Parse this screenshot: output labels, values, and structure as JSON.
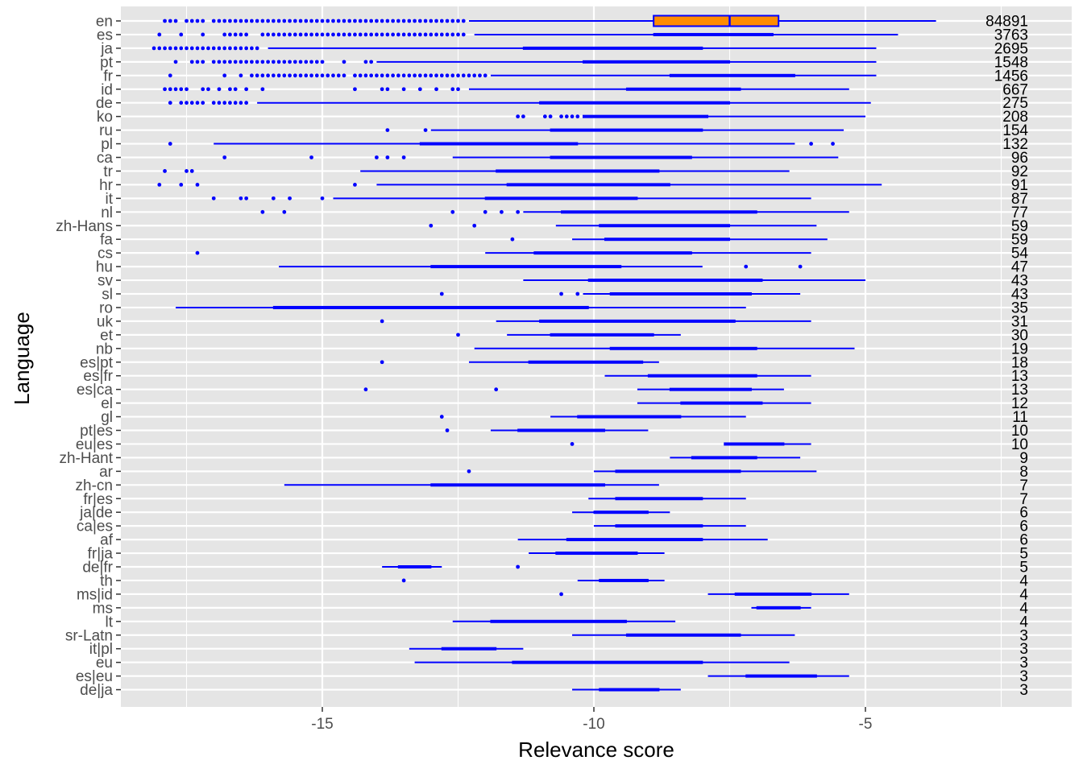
{
  "chart_data": {
    "type": "boxplot",
    "orientation": "horizontal",
    "title": "",
    "xlabel": "Relevance score",
    "ylabel": "Language",
    "xlim": [
      -19,
      -1.6
    ],
    "xticks": [
      -15,
      -10,
      -5
    ],
    "grid": true,
    "colors": {
      "panel": "#e5e5e5",
      "grid": "#ffffff",
      "whisker": "#0000ff",
      "box_fill": "#ff8c00",
      "box_outline": "#0000ff",
      "text": "#4d4d4d",
      "count_text": "#000000"
    },
    "series": [
      {
        "name": "en",
        "count": "84891",
        "box": {
          "q1": -8.9,
          "median": -7.5,
          "q3": -6.6
        },
        "whisker": [
          -12.3,
          -3.7
        ],
        "outliers": [
          -17.9,
          -17.8,
          -17.7,
          -17.5,
          -17.4,
          -17.3,
          -17.2,
          -17.0,
          -16.9,
          -16.8,
          -16.7,
          -16.6,
          -16.5,
          -16.4,
          -16.3,
          -16.2,
          -16.1,
          -16.0,
          -15.9,
          -15.8,
          -15.7,
          -15.6,
          -15.5,
          -15.4,
          -15.3,
          -15.2,
          -15.1,
          -15.0,
          -14.9,
          -14.8,
          -14.7,
          -14.6,
          -14.5,
          -14.4,
          -14.3,
          -14.2,
          -14.1,
          -14.0,
          -13.9,
          -13.8,
          -13.7,
          -13.6,
          -13.5,
          -13.4,
          -13.3,
          -13.2,
          -13.1,
          -13.0,
          -12.9,
          -12.8,
          -12.7,
          -12.6,
          -12.5,
          -12.4
        ]
      },
      {
        "name": "es",
        "count": "3763",
        "box": {
          "q1": -8.9,
          "median": -7.7,
          "q3": -6.7
        },
        "whisker": [
          -12.2,
          -4.4
        ],
        "outliers": [
          -18.0,
          -17.6,
          -17.2,
          -16.8,
          -16.7,
          -16.6,
          -16.5,
          -16.4,
          -16.1,
          -16.0,
          -15.9,
          -15.8,
          -15.7,
          -15.6,
          -15.5,
          -15.4,
          -15.3,
          -15.2,
          -15.1,
          -15.0,
          -14.9,
          -14.8,
          -14.7,
          -14.6,
          -14.5,
          -14.4,
          -14.3,
          -14.2,
          -14.1,
          -14.0,
          -13.9,
          -13.8,
          -13.7,
          -13.6,
          -13.5,
          -13.4,
          -13.3,
          -13.2,
          -13.1,
          -13.0,
          -12.9,
          -12.8,
          -12.7,
          -12.6,
          -12.5,
          -12.4
        ]
      },
      {
        "name": "ja",
        "count": "2695",
        "box": {
          "q1": -11.3,
          "median": -9.5,
          "q3": -8.0
        },
        "whisker": [
          -16.0,
          -4.8
        ],
        "outliers": [
          -18.1,
          -18.0,
          -17.9,
          -17.8,
          -17.7,
          -17.6,
          -17.5,
          -17.4,
          -17.3,
          -17.2,
          -17.1,
          -17.0,
          -16.9,
          -16.8,
          -16.7,
          -16.6,
          -16.5,
          -16.4,
          -16.3,
          -16.2
        ]
      },
      {
        "name": "pt",
        "count": "1548",
        "box": {
          "q1": -10.2,
          "median": -8.7,
          "q3": -7.5
        },
        "whisker": [
          -14.0,
          -4.8
        ],
        "outliers": [
          -17.7,
          -17.4,
          -17.3,
          -17.2,
          -17.0,
          -16.9,
          -16.8,
          -16.7,
          -16.6,
          -16.5,
          -16.4,
          -16.3,
          -16.2,
          -16.1,
          -16.0,
          -15.9,
          -15.8,
          -15.7,
          -15.6,
          -15.5,
          -15.4,
          -15.3,
          -15.2,
          -15.1,
          -15.0,
          -14.6,
          -14.2,
          -14.1
        ]
      },
      {
        "name": "fr",
        "count": "1456",
        "box": {
          "q1": -8.6,
          "median": -7.2,
          "q3": -6.3
        },
        "whisker": [
          -11.9,
          -4.8
        ],
        "outliers": [
          -17.8,
          -16.8,
          -16.5,
          -16.3,
          -16.2,
          -16.1,
          -16.0,
          -15.9,
          -15.8,
          -15.7,
          -15.6,
          -15.5,
          -15.4,
          -15.3,
          -15.2,
          -15.1,
          -15.0,
          -14.9,
          -14.8,
          -14.7,
          -14.6,
          -14.4,
          -14.3,
          -14.2,
          -14.1,
          -14.0,
          -13.9,
          -13.8,
          -13.7,
          -13.6,
          -13.5,
          -13.4,
          -13.3,
          -13.2,
          -13.1,
          -13.0,
          -12.9,
          -12.8,
          -12.7,
          -12.6,
          -12.5,
          -12.4,
          -12.3,
          -12.2,
          -12.1,
          -12.0
        ]
      },
      {
        "name": "id",
        "count": "667",
        "box": {
          "q1": -9.4,
          "median": -8.2,
          "q3": -7.3
        },
        "whisker": [
          -12.3,
          -5.3
        ],
        "outliers": [
          -17.9,
          -17.8,
          -17.7,
          -17.6,
          -17.5,
          -17.2,
          -17.1,
          -16.9,
          -16.7,
          -16.6,
          -16.4,
          -16.1,
          -14.4,
          -13.9,
          -13.8,
          -13.5,
          -13.2,
          -12.9,
          -12.6,
          -12.5
        ]
      },
      {
        "name": "de",
        "count": "275",
        "box": {
          "q1": -11.0,
          "median": -9.1,
          "q3": -7.5
        },
        "whisker": [
          -16.2,
          -4.9
        ],
        "outliers": [
          -17.8,
          -17.6,
          -17.5,
          -17.4,
          -17.3,
          -17.2,
          -17.0,
          -16.9,
          -16.8,
          -16.7,
          -16.6,
          -16.5,
          -16.4
        ]
      },
      {
        "name": "ko",
        "count": "208",
        "box": {
          "q1": -10.2,
          "median": -8.8,
          "q3": -7.9
        },
        "whisker": [
          -10.2,
          -5.0
        ],
        "outliers": [
          -11.4,
          -11.3,
          -10.9,
          -10.8,
          -10.6,
          -10.5,
          -10.4,
          -10.3
        ]
      },
      {
        "name": "ru",
        "count": "154",
        "box": {
          "q1": -10.8,
          "median": -9.2,
          "q3": -8.0
        },
        "whisker": [
          -13.0,
          -5.4
        ],
        "outliers": [
          -13.8,
          -13.1
        ]
      },
      {
        "name": "pl",
        "count": "132",
        "box": {
          "q1": -13.2,
          "median": -11.6,
          "q3": -10.3
        },
        "whisker": [
          -17.0,
          -6.3
        ],
        "outliers": [
          -17.8,
          -6.0,
          -5.6
        ]
      },
      {
        "name": "ca",
        "count": "96",
        "box": {
          "q1": -10.8,
          "median": -9.2,
          "q3": -8.2
        },
        "whisker": [
          -12.6,
          -5.5
        ],
        "outliers": [
          -16.8,
          -15.2,
          -14.0,
          -13.8,
          -13.5
        ]
      },
      {
        "name": "tr",
        "count": "92",
        "box": {
          "q1": -11.8,
          "median": -10.2,
          "q3": -8.8
        },
        "whisker": [
          -14.3,
          -6.4
        ],
        "outliers": [
          -17.9,
          -17.5,
          -17.4
        ]
      },
      {
        "name": "hr",
        "count": "91",
        "box": {
          "q1": -11.6,
          "median": -9.9,
          "q3": -8.6
        },
        "whisker": [
          -14.0,
          -4.7
        ],
        "outliers": [
          -18.0,
          -17.6,
          -17.3,
          -14.4
        ]
      },
      {
        "name": "it",
        "count": "87",
        "box": {
          "q1": -12.0,
          "median": -10.6,
          "q3": -9.2
        },
        "whisker": [
          -14.8,
          -6.0
        ],
        "outliers": [
          -17.0,
          -16.5,
          -16.4,
          -15.9,
          -15.6,
          -15.0
        ]
      },
      {
        "name": "nl",
        "count": "77",
        "box": {
          "q1": -10.6,
          "median": -8.6,
          "q3": -7.0
        },
        "whisker": [
          -11.3,
          -5.3
        ],
        "outliers": [
          -16.1,
          -15.7,
          -12.6,
          -12.0,
          -11.7,
          -11.4
        ]
      },
      {
        "name": "zh-Hans",
        "count": "59",
        "box": {
          "q1": -9.9,
          "median": -8.6,
          "q3": -7.5
        },
        "whisker": [
          -10.7,
          -5.9
        ],
        "outliers": [
          -13.0,
          -12.2
        ]
      },
      {
        "name": "fa",
        "count": "59",
        "box": {
          "q1": -9.8,
          "median": -8.6,
          "q3": -7.5
        },
        "whisker": [
          -10.4,
          -5.7
        ],
        "outliers": [
          -11.5
        ]
      },
      {
        "name": "cs",
        "count": "54",
        "box": {
          "q1": -11.1,
          "median": -9.6,
          "q3": -8.2
        },
        "whisker": [
          -12.0,
          -6.0
        ],
        "outliers": [
          -17.3
        ]
      },
      {
        "name": "hu",
        "count": "47",
        "box": {
          "q1": -13.0,
          "median": -10.9,
          "q3": -9.5
        },
        "whisker": [
          -15.8,
          -8.0
        ],
        "outliers": [
          -7.2,
          -6.2
        ]
      },
      {
        "name": "sv",
        "count": "43",
        "box": {
          "q1": -10.1,
          "median": -8.7,
          "q3": -6.9
        },
        "whisker": [
          -11.3,
          -5.0
        ],
        "outliers": []
      },
      {
        "name": "sl",
        "count": "43",
        "box": {
          "q1": -9.7,
          "median": -8.5,
          "q3": -7.1
        },
        "whisker": [
          -10.2,
          -6.2
        ],
        "outliers": [
          -12.8,
          -10.6,
          -10.3
        ]
      },
      {
        "name": "ro",
        "count": "35",
        "box": {
          "q1": -15.9,
          "median": -12.5,
          "q3": -10.1
        },
        "whisker": [
          -17.7,
          -7.2
        ],
        "outliers": []
      },
      {
        "name": "uk",
        "count": "31",
        "box": {
          "q1": -11.0,
          "median": -9.2,
          "q3": -7.4
        },
        "whisker": [
          -11.8,
          -6.0
        ],
        "outliers": [
          -13.9
        ]
      },
      {
        "name": "et",
        "count": "30",
        "box": {
          "q1": -10.8,
          "median": -9.5,
          "q3": -8.9
        },
        "whisker": [
          -11.6,
          -8.4
        ],
        "outliers": [
          -12.5
        ]
      },
      {
        "name": "nb",
        "count": "19",
        "box": {
          "q1": -9.7,
          "median": -8.3,
          "q3": -7.0
        },
        "whisker": [
          -12.2,
          -5.2
        ],
        "outliers": []
      },
      {
        "name": "es|pt",
        "count": "18",
        "box": {
          "q1": -11.2,
          "median": -10.1,
          "q3": -9.1
        },
        "whisker": [
          -12.3,
          -8.8
        ],
        "outliers": [
          -13.9
        ]
      },
      {
        "name": "es|fr",
        "count": "13",
        "box": {
          "q1": -9.0,
          "median": -8.0,
          "q3": -7.0
        },
        "whisker": [
          -9.8,
          -6.0
        ],
        "outliers": []
      },
      {
        "name": "es|ca",
        "count": "13",
        "box": {
          "q1": -8.6,
          "median": -8.0,
          "q3": -7.1
        },
        "whisker": [
          -9.2,
          -6.5
        ],
        "outliers": [
          -14.2,
          -11.8
        ]
      },
      {
        "name": "el",
        "count": "12",
        "box": {
          "q1": -8.4,
          "median": -7.6,
          "q3": -6.9
        },
        "whisker": [
          -9.2,
          -6.0
        ],
        "outliers": []
      },
      {
        "name": "gl",
        "count": "11",
        "box": {
          "q1": -10.3,
          "median": -9.4,
          "q3": -8.4
        },
        "whisker": [
          -10.8,
          -7.2
        ],
        "outliers": [
          -12.8
        ]
      },
      {
        "name": "pt|es",
        "count": "10",
        "box": {
          "q1": -11.4,
          "median": -10.6,
          "q3": -9.8
        },
        "whisker": [
          -11.9,
          -9.0
        ],
        "outliers": [
          -12.7
        ]
      },
      {
        "name": "eu|es",
        "count": "10",
        "box": {
          "q1": -7.6,
          "median": -7.0,
          "q3": -6.5
        },
        "whisker": [
          -7.6,
          -6.0
        ],
        "outliers": [
          -10.4
        ]
      },
      {
        "name": "zh-Hant",
        "count": "9",
        "box": {
          "q1": -8.2,
          "median": -7.5,
          "q3": -7.0
        },
        "whisker": [
          -8.6,
          -6.2
        ],
        "outliers": []
      },
      {
        "name": "ar",
        "count": "8",
        "box": {
          "q1": -9.6,
          "median": -9.0,
          "q3": -7.3
        },
        "whisker": [
          -10.0,
          -5.9
        ],
        "outliers": [
          -12.3
        ]
      },
      {
        "name": "zh-cn",
        "count": "7",
        "box": {
          "q1": -13.0,
          "median": -11.0,
          "q3": -9.8
        },
        "whisker": [
          -15.7,
          -8.8
        ],
        "outliers": []
      },
      {
        "name": "fr|es",
        "count": "7",
        "box": {
          "q1": -9.6,
          "median": -8.8,
          "q3": -8.0
        },
        "whisker": [
          -10.1,
          -7.2
        ],
        "outliers": []
      },
      {
        "name": "ja|de",
        "count": "6",
        "box": {
          "q1": -10.0,
          "median": -9.5,
          "q3": -9.0
        },
        "whisker": [
          -10.4,
          -8.6
        ],
        "outliers": []
      },
      {
        "name": "ca|es",
        "count": "6",
        "box": {
          "q1": -9.6,
          "median": -8.8,
          "q3": -8.0
        },
        "whisker": [
          -10.0,
          -7.2
        ],
        "outliers": []
      },
      {
        "name": "af",
        "count": "6",
        "box": {
          "q1": -10.5,
          "median": -9.4,
          "q3": -8.0
        },
        "whisker": [
          -11.4,
          -6.8
        ],
        "outliers": []
      },
      {
        "name": "fr|ja",
        "count": "5",
        "box": {
          "q1": -10.7,
          "median": -10.0,
          "q3": -9.2
        },
        "whisker": [
          -11.2,
          -8.7
        ],
        "outliers": []
      },
      {
        "name": "de|fr",
        "count": "5",
        "box": {
          "q1": -13.6,
          "median": -13.3,
          "q3": -13.0
        },
        "whisker": [
          -13.9,
          -12.8
        ],
        "outliers": [
          -11.4
        ]
      },
      {
        "name": "th",
        "count": "4",
        "box": {
          "q1": -9.9,
          "median": -9.5,
          "q3": -9.0
        },
        "whisker": [
          -10.3,
          -8.7
        ],
        "outliers": [
          -13.5
        ]
      },
      {
        "name": "ms|id",
        "count": "4",
        "box": {
          "q1": -7.4,
          "median": -6.8,
          "q3": -6.0
        },
        "whisker": [
          -7.9,
          -5.3
        ],
        "outliers": [
          -10.6
        ]
      },
      {
        "name": "ms",
        "count": "4",
        "box": {
          "q1": -7.0,
          "median": -6.5,
          "q3": -6.2
        },
        "whisker": [
          -7.1,
          -6.0
        ],
        "outliers": []
      },
      {
        "name": "lt",
        "count": "4",
        "box": {
          "q1": -11.9,
          "median": -10.6,
          "q3": -9.4
        },
        "whisker": [
          -12.6,
          -8.5
        ],
        "outliers": []
      },
      {
        "name": "sr-Latn",
        "count": "3",
        "box": {
          "q1": -9.4,
          "median": -8.2,
          "q3": -7.3
        },
        "whisker": [
          -10.4,
          -6.3
        ],
        "outliers": []
      },
      {
        "name": "it|pl",
        "count": "3",
        "box": {
          "q1": -12.8,
          "median": -12.3,
          "q3": -11.8
        },
        "whisker": [
          -13.4,
          -11.3
        ],
        "outliers": []
      },
      {
        "name": "eu",
        "count": "3",
        "box": {
          "q1": -11.5,
          "median": -9.7,
          "q3": -8.0
        },
        "whisker": [
          -13.3,
          -6.4
        ],
        "outliers": []
      },
      {
        "name": "es|eu",
        "count": "3",
        "box": {
          "q1": -7.2,
          "median": -6.5,
          "q3": -5.9
        },
        "whisker": [
          -7.9,
          -5.3
        ],
        "outliers": []
      },
      {
        "name": "de|ja",
        "count": "3",
        "box": {
          "q1": -9.9,
          "median": -9.3,
          "q3": -8.8
        },
        "whisker": [
          -10.4,
          -8.4
        ],
        "outliers": []
      }
    ]
  }
}
